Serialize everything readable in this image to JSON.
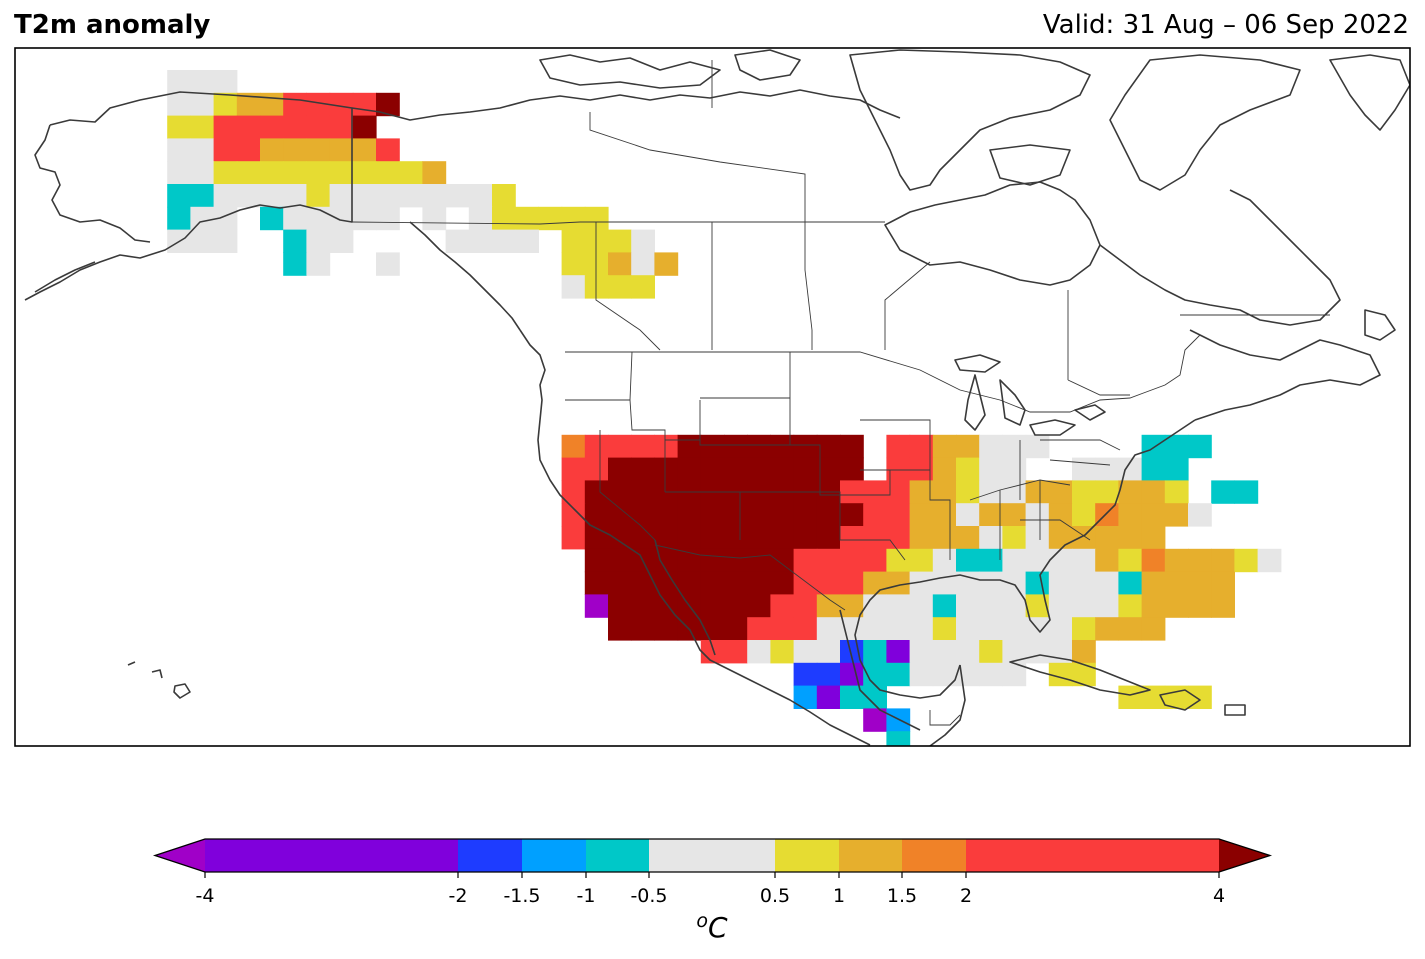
{
  "header": {
    "title": "T2m anomaly",
    "valid": "Valid: 31 Aug – 06 Sep 2022"
  },
  "colorbar": {
    "unit_base": "C",
    "unit_super": "o",
    "ticks": [
      {
        "value": -4,
        "label": "-4"
      },
      {
        "value": -2,
        "label": "-2"
      },
      {
        "value": -1.5,
        "label": "-1.5"
      },
      {
        "value": -1,
        "label": "-1"
      },
      {
        "value": -0.5,
        "label": "-0.5"
      },
      {
        "value": 0.5,
        "label": "0.5"
      },
      {
        "value": 1,
        "label": "1"
      },
      {
        "value": 1.5,
        "label": "1.5"
      },
      {
        "value": 2,
        "label": "2"
      },
      {
        "value": 4,
        "label": "4"
      }
    ],
    "bins": [
      {
        "from": -4,
        "to": -2,
        "color": "#8000dc"
      },
      {
        "from": -2,
        "to": -1.5,
        "color": "#1e3cff"
      },
      {
        "from": -1.5,
        "to": -1,
        "color": "#00a0ff"
      },
      {
        "from": -1,
        "to": -0.5,
        "color": "#00c8c8"
      },
      {
        "from": -0.5,
        "to": 0.5,
        "color": "#e6e6e6"
      },
      {
        "from": 0.5,
        "to": 1,
        "color": "#e6dc32"
      },
      {
        "from": 1,
        "to": 1.5,
        "color": "#e6af2d"
      },
      {
        "from": 1.5,
        "to": 2,
        "color": "#f08228"
      },
      {
        "from": 2,
        "to": 4,
        "color": "#fa3c3c"
      }
    ],
    "under_color": "#a000c8",
    "over_color": "#8b0000"
  },
  "legend_colors": {
    "k1": "#8000dc",
    "k2": "#1e3cff",
    "k3": "#00a0ff",
    "k4": "#00c8c8",
    "k5": "#e6e6e6",
    "k6": "#e6dc32",
    "k7": "#e6af2d",
    "k8": "#f08228",
    "k9": "#fa3c3c",
    "kA": "#8b0000",
    "kB": "#a000c8"
  },
  "grid_rows": [
    "______555______________________________________________________________________",
    "______556779999A_______________________________________________________________",
    "______66999999A_______________________________________________________________",
    "______5599777779_______________________________________________________________",
    "______556666666667______________________________________________________________",
    "______445555655555556___________________________________________________________",
    "______455_455555_5_566666______________________________________________________",
    "______555__455____5555_6665______________________________________________________",
    "___________45__5_______66757_____________________________________________________",
    "_______________________5666_____________________________________________________",
    "_________________________________________________________________________________",
    "____________________________________________________________________________",
    "_________________________________________________________________________________",
    "_________________________________________________________________________________",
    "_________________________________________________________________________________",
    "_________________________________________________________________________________",
    "_______________________89999AAAAAAAA_9977555____444_____________________________",
    "_______________________99AAAAAAAAAAA_997655__55544_______________________________",
    "_______________________9AAAAAAAAAAA999776557766776_44____________________________",
    "_______________________9AAAAAAAAAAAA997757757687775_______________________________",
    "_______________________9AAAAAAAAAAA99977756577777_____________________________",
    "________________________AAAAAAAAA999966544555576877765__________________________",
    "________________________AAAAAAAAA9997755555455547777____________________________",
    "________________________BAAAAAAA99775554555655567777____________________________",
    "_________________________AAAAAA999555556555556777________________________________",
    "_____________________________99565524155565557_______________________________",
    "_________________________________2214455555_66______________________________",
    "_________________________________3144__________6666___________________________",
    "____________________________________B3_________________________________",
    "_____________________________________4_________________________________________"
  ]
}
